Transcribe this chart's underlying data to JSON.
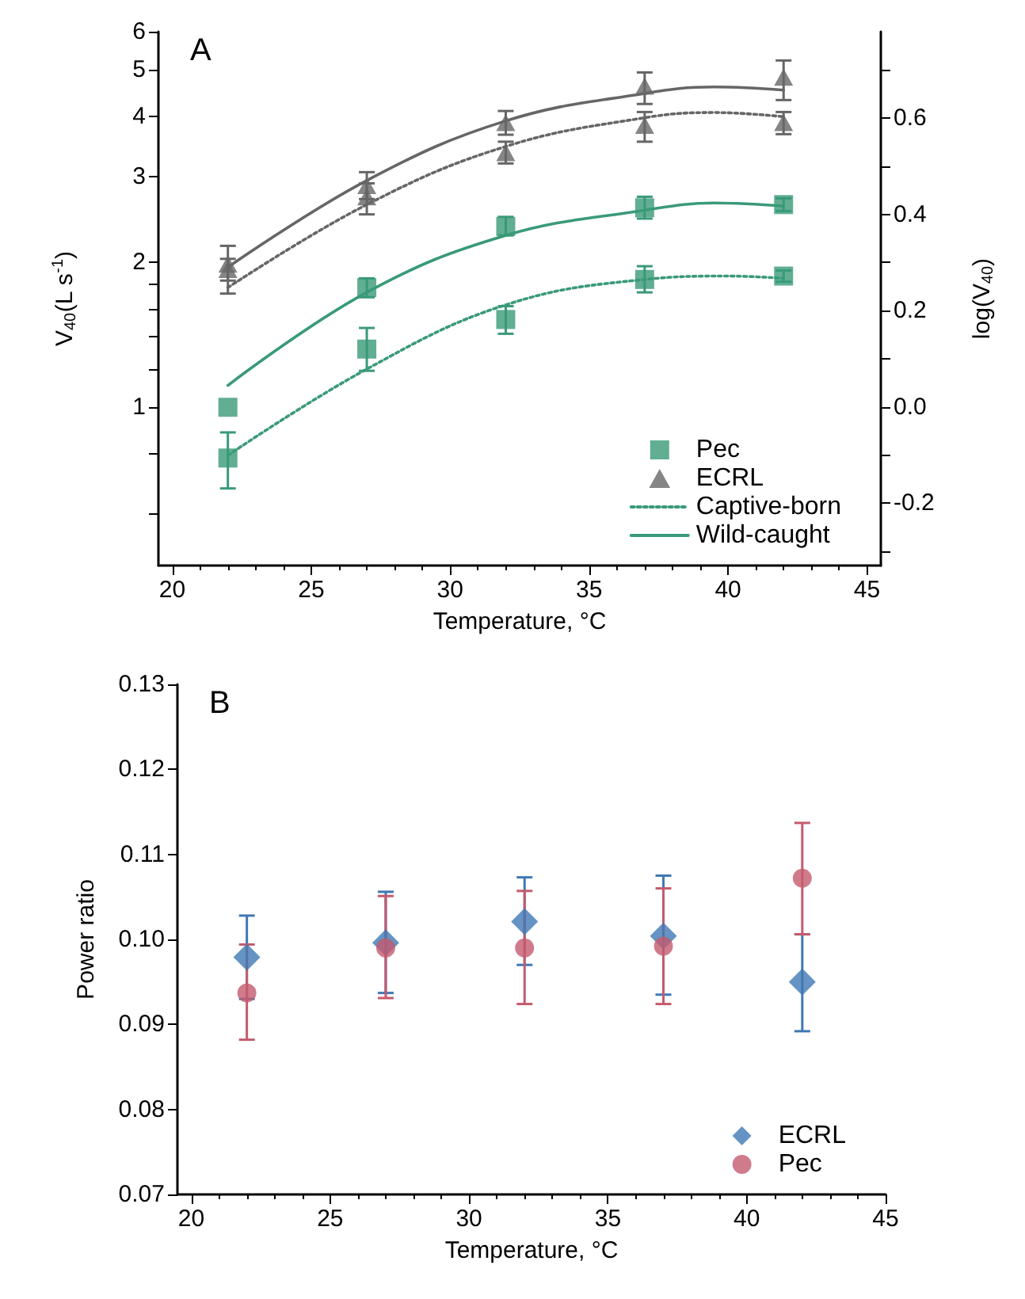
{
  "chart_data": [
    {
      "type": "scatter",
      "annotations": [
        "A"
      ],
      "xlabel": "Temperature, °C",
      "ylabel": "V$_{40}$(L s$^{-1}$)",
      "y2label": "log(V$_{40}$)",
      "xlim": [
        19.5,
        45.5
      ],
      "xticks": [
        20,
        25,
        30,
        35,
        40,
        45
      ],
      "ylim": [
        0.47,
        6
      ],
      "log": "y",
      "yticks": [
        {
          "value": 0.6,
          "label": null
        },
        {
          "value": 0.8,
          "label": null
        },
        1,
        {
          "value": 1.2,
          "label": null
        },
        {
          "value": 1.4,
          "label": null
        },
        {
          "value": 1.6,
          "label": null
        },
        {
          "value": 1.8,
          "label": null
        },
        2,
        3,
        4,
        5,
        6
      ],
      "y2lim": [
        -0.33,
        0.78
      ],
      "y2ticks": [
        {
          "value": -0.3,
          "label": null
        },
        {
          "value": -0.2,
          "label": "-0.2"
        },
        {
          "value": -0.1,
          "label": null
        },
        {
          "value": 0,
          "label": "0.0"
        },
        {
          "value": 0.1,
          "label": null
        },
        {
          "value": 0.2,
          "label": "0.2"
        },
        {
          "value": 0.3,
          "label": null
        },
        {
          "value": 0.4,
          "label": "0.4"
        },
        {
          "value": 0.5,
          "label": null
        },
        {
          "value": 0.6,
          "label": "0.6"
        },
        {
          "value": 0.7,
          "label": null
        }
      ],
      "grid": false,
      "legend": "bottom right",
      "series": [
        {
          "name": "Pec",
          "marker": "square",
          "color": "#3a9a78",
          "x": [
            22,
            27,
            32,
            37,
            42
          ],
          "values": [
            1.0,
            1.77,
            2.37,
            2.59,
            2.63
          ],
          "errors": [
            null,
            [
              1.69,
              1.85
            ],
            [
              2.27,
              2.48
            ],
            [
              2.46,
              2.73
            ],
            [
              2.55,
              2.71
            ]
          ]
        },
        {
          "name": "ECRL",
          "marker": "triangle",
          "color": "#666666",
          "x": [
            22,
            27,
            32,
            37,
            42
          ],
          "values": [
            1.98,
            2.88,
            3.89,
            4.63,
            4.83
          ],
          "errors": [
            [
              1.83,
              2.16
            ],
            [
              2.7,
              3.07
            ],
            [
              3.67,
              4.11
            ],
            [
              4.25,
              4.94
            ],
            [
              4.33,
              5.23
            ]
          ]
        },
        {
          "marker": "square",
          "color": "#3a9a78",
          "x": [
            22,
            27,
            32,
            37,
            42
          ],
          "values": [
            0.785,
            1.32,
            1.52,
            1.84,
            1.87
          ],
          "errors": [
            [
              0.679,
              0.887
            ],
            [
              1.19,
              1.46
            ],
            [
              1.42,
              1.62
            ],
            [
              1.73,
              1.96
            ],
            [
              1.82,
              1.92
            ]
          ]
        },
        {
          "marker": "triangle",
          "color": "#666666",
          "x": [
            22,
            27,
            32,
            37,
            42
          ],
          "values": [
            1.93,
            2.73,
            3.37,
            3.84,
            3.89
          ],
          "errors": [
            [
              1.72,
              2.03
            ],
            [
              2.51,
              2.91
            ],
            [
              3.2,
              3.55
            ],
            [
              3.55,
              4.09
            ],
            [
              3.68,
              4.09
            ]
          ]
        },
        {
          "name": "Captive-born",
          "type": "line",
          "line_style": "dotted",
          "marker": "none",
          "color": "#3a9a78",
          "x": [
            22,
            27,
            32,
            37,
            40,
            42
          ],
          "values": [
            0.795,
            1.2,
            1.63,
            1.84,
            1.87,
            1.85
          ]
        },
        {
          "name": "Wild-caught",
          "type": "line",
          "line_style": "solid",
          "marker": "none",
          "color": "#3a9a78",
          "x": [
            22,
            27,
            32,
            37,
            39.5,
            42
          ],
          "values": [
            1.11,
            1.73,
            2.27,
            2.56,
            2.65,
            2.61
          ]
        },
        {
          "type": "line",
          "line_style": "dotted",
          "marker": "none",
          "color": "#666666",
          "x": [
            22,
            27,
            32,
            37,
            39.5,
            42
          ],
          "values": [
            1.77,
            2.63,
            3.47,
            3.98,
            4.08,
            4.0
          ]
        },
        {
          "type": "line",
          "line_style": "solid",
          "marker": "none",
          "color": "#666666",
          "x": [
            22,
            27,
            32,
            37,
            39.5,
            42
          ],
          "values": [
            1.95,
            2.95,
            3.92,
            4.47,
            4.61,
            4.54
          ]
        }
      ]
    },
    {
      "type": "scatter",
      "annotations": [
        "B"
      ],
      "xlabel": "Temperature, °C",
      "ylabel": "Power ratio",
      "xlim": [
        19.5,
        45
      ],
      "xticks": [
        20,
        25,
        30,
        35,
        40,
        45
      ],
      "ylim": [
        0.07,
        0.13
      ],
      "yticks": [
        {
          "value": 0.07,
          "label": "0.07"
        },
        {
          "value": 0.08,
          "label": "0.08"
        },
        {
          "value": 0.09,
          "label": "0.09"
        },
        {
          "value": 0.1,
          "label": "0.10"
        },
        {
          "value": 0.11,
          "label": "0.11"
        },
        {
          "value": 0.12,
          "label": "0.12"
        },
        {
          "value": 0.13,
          "label": "0.13"
        }
      ],
      "grid": false,
      "legend": "bottom right",
      "series": [
        {
          "name": "ECRL",
          "marker": "diamond",
          "color": "#3f78b4",
          "x": [
            22,
            27,
            32,
            37,
            42
          ],
          "values": [
            0.0979,
            0.0996,
            0.1021,
            0.1004,
            0.095
          ],
          "errors": [
            [
              0.093,
              0.1028
            ],
            [
              0.0937,
              0.1056
            ],
            [
              0.097,
              0.1073
            ],
            [
              0.0935,
              0.1075
            ],
            [
              0.0892,
              0.1006
            ]
          ]
        },
        {
          "name": "Pec",
          "marker": "circle",
          "color": "#c45a6e",
          "x": [
            22,
            27,
            32,
            37,
            42
          ],
          "values": [
            0.0937,
            0.099,
            0.099,
            0.0992,
            0.1072
          ],
          "errors": [
            [
              0.0882,
              0.0994
            ],
            [
              0.0931,
              0.1051
            ],
            [
              0.0924,
              0.1057
            ],
            [
              0.0924,
              0.106
            ],
            [
              0.1006,
              0.1137
            ]
          ]
        }
      ]
    }
  ]
}
